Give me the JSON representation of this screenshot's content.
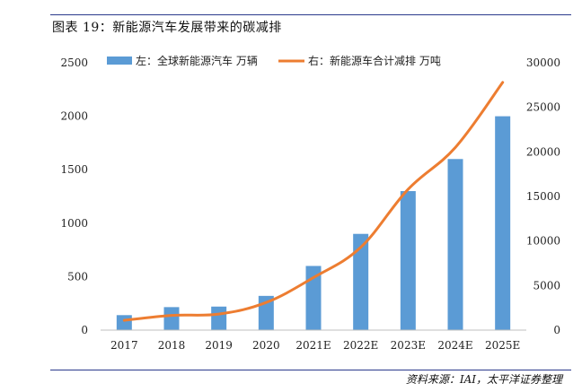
{
  "figure": {
    "title": "图表 19：新能源汽车发展带来的碳减排",
    "source": "资料来源：IAI，太平洋证券整理"
  },
  "colors": {
    "bar": "#5b9bd5",
    "line": "#ed7d31",
    "rule": "#2a3a8c"
  },
  "chart_data": {
    "type": "bar",
    "categories": [
      "2017",
      "2018",
      "2019",
      "2020",
      "2021E",
      "2022E",
      "2023E",
      "2024E",
      "2025E"
    ],
    "series": [
      {
        "name": "左：全球新能源汽车 万辆",
        "type": "bar",
        "axis": "left",
        "values": [
          140,
          215,
          220,
          320,
          600,
          900,
          1300,
          1600,
          2000
        ]
      },
      {
        "name": "右：新能源车合计减排 万吨",
        "type": "line",
        "axis": "right",
        "values": [
          1100,
          1650,
          1800,
          3100,
          5900,
          9300,
          15800,
          20500,
          27800
        ]
      }
    ],
    "left_axis": {
      "ticks": [
        "0",
        "500",
        "1000",
        "1500",
        "2000",
        "2500"
      ],
      "range": [
        0,
        2500
      ]
    },
    "right_axis": {
      "ticks": [
        "0",
        "5000",
        "10000",
        "15000",
        "20000",
        "25000",
        "30000"
      ],
      "range": [
        0,
        30000
      ]
    },
    "legend_position": "top",
    "grid": false
  }
}
